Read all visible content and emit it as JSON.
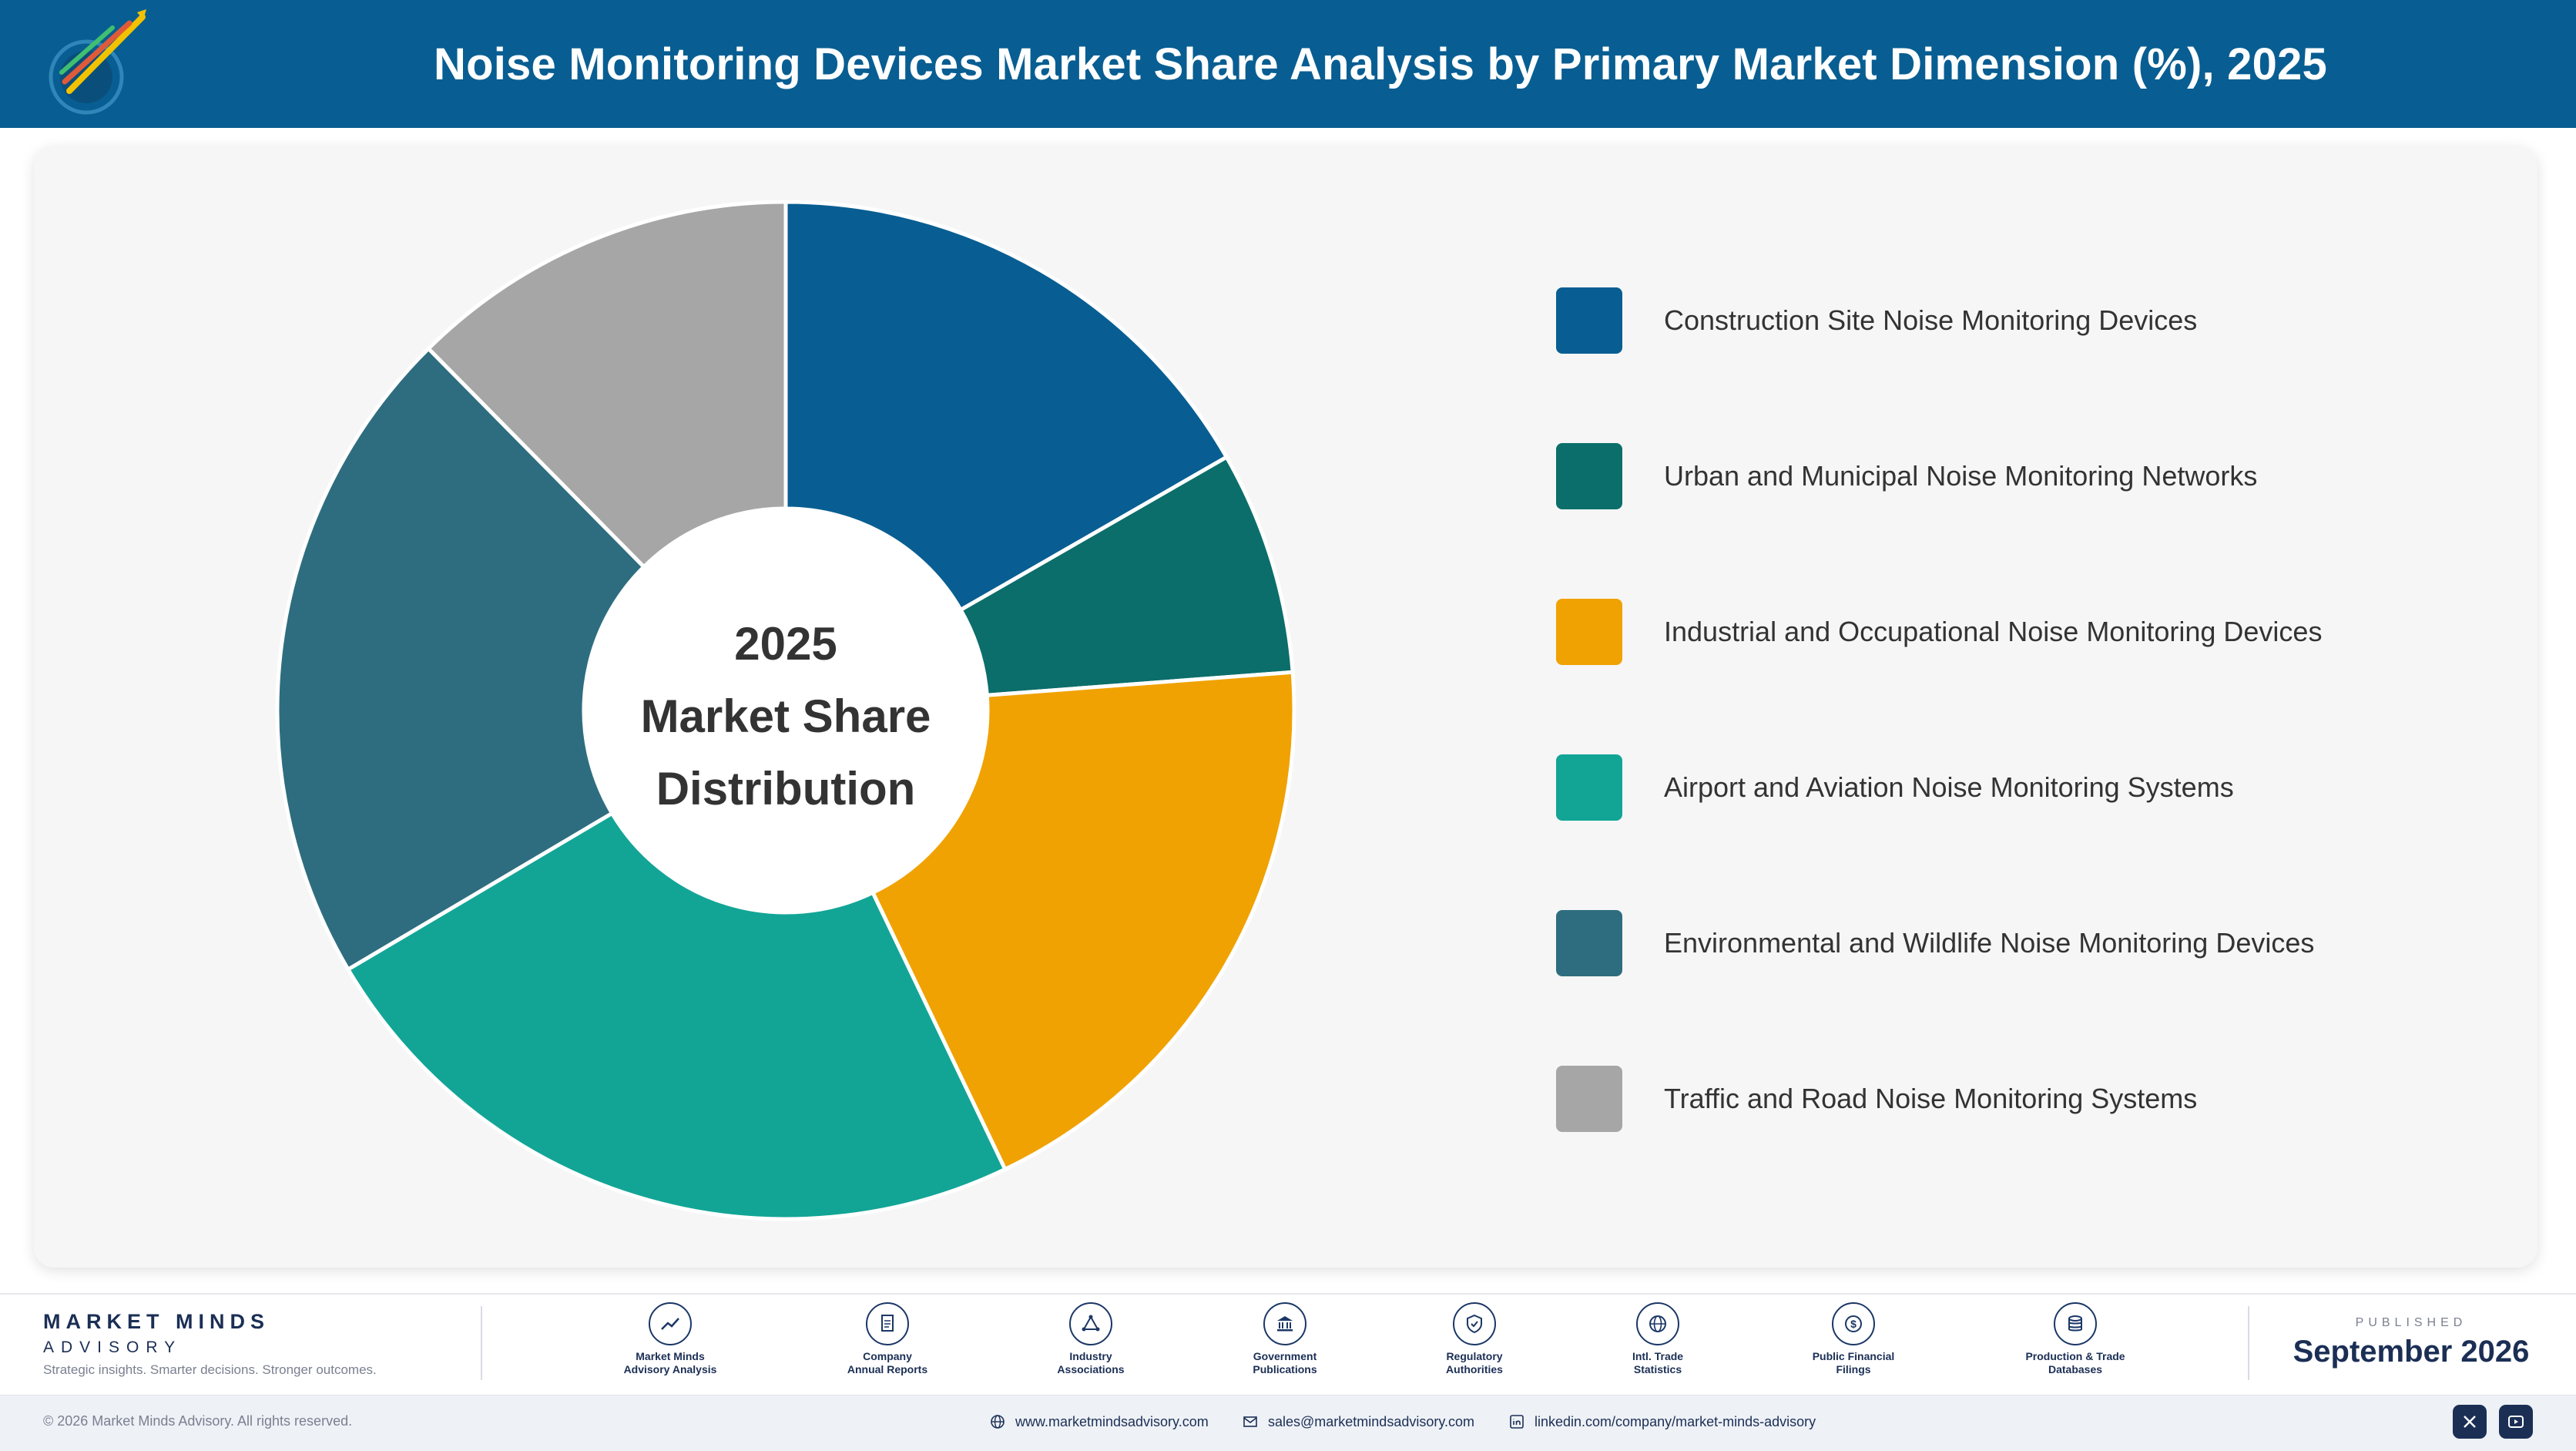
{
  "header": {
    "title": "Noise Monitoring Devices Market Share Analysis by Primary Market Dimension (%), 2025",
    "logo_text": "Market Minds Advisory"
  },
  "chart_data": {
    "type": "pie",
    "variant": "donut",
    "center_label": [
      "2025",
      "Market Share",
      "Distribution"
    ],
    "categories": [
      "Construction Site Noise Monitoring Devices",
      "Urban and Municipal Noise Monitoring Networks",
      "Industrial and Occupational Noise Monitoring Devices",
      "Airport and Aviation Noise Monitoring Systems",
      "Environmental and Wildlife Noise Monitoring Devices",
      "Traffic and Road Noise Monitoring Systems"
    ],
    "values": [
      16.7,
      7.1,
      19.1,
      23.6,
      21.1,
      12.4
    ],
    "colors": [
      "#085e92",
      "#0b6e6a",
      "#f0a202",
      "#12a596",
      "#2e6d7f",
      "#a6a6a6"
    ],
    "legend_position": "right"
  },
  "footer": {
    "brand_name": "MARKET MINDS",
    "brand_sub": "ADVISORY",
    "tagline": "Strategic insights. Smarter decisions. Stronger outcomes.",
    "sources": [
      {
        "label": "Market Minds\nAdvisory Analysis",
        "icon": "trend-icon"
      },
      {
        "label": "Company\nAnnual Reports",
        "icon": "document-icon"
      },
      {
        "label": "Industry\nAssociations",
        "icon": "network-icon"
      },
      {
        "label": "Government\nPublications",
        "icon": "government-icon"
      },
      {
        "label": "Regulatory\nAuthorities",
        "icon": "shield-icon"
      },
      {
        "label": "Intl. Trade\nStatistics",
        "icon": "globe-icon"
      },
      {
        "label": "Public Financial\nFilings",
        "icon": "currency-icon"
      },
      {
        "label": "Production & Trade\nDatabases",
        "icon": "database-icon"
      }
    ],
    "published_label": "PUBLISHED",
    "published_date": "September 2026",
    "copyright": "© 2026 Market Minds Advisory. All rights reserved.",
    "website": "www.marketmindsadvisory.com",
    "email": "sales@marketmindsadvisory.com",
    "linkedin": "linkedin.com/company/market-minds-advisory"
  }
}
